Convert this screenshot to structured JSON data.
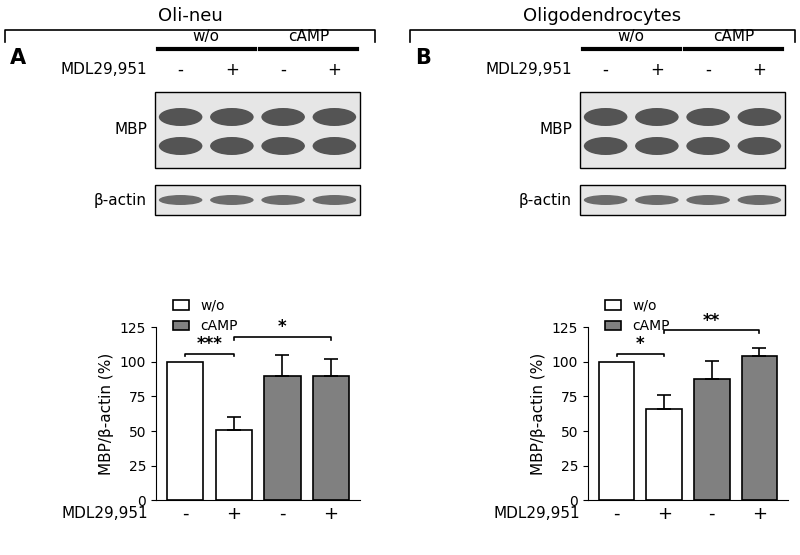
{
  "figure": {
    "panels": [
      {
        "letter": "A",
        "header": "Oli-neu",
        "groups": [
          "w/o",
          "cAMP"
        ],
        "treatment": "MDL29,951",
        "lanes": [
          "-",
          "+",
          "-",
          "+"
        ],
        "rows": [
          "MBP",
          "β-actin"
        ]
      },
      {
        "letter": "B",
        "header": "Oligodendrocytes",
        "groups": [
          "w/o",
          "cAMP"
        ],
        "treatment": "MDL29,951",
        "lanes": [
          "-",
          "+",
          "-",
          "+"
        ],
        "rows": [
          "MBP",
          "β-actin"
        ]
      }
    ]
  },
  "chart_data": [
    {
      "type": "bar",
      "ylabel": "MBP/β-actin (%)",
      "xlabel": "MDL29,951",
      "categories": [
        "-",
        "+",
        "-",
        "+"
      ],
      "series": [
        {
          "name": "w/o",
          "color": "#ffffff",
          "values": [
            100,
            51,
            null,
            null
          ],
          "errors": [
            0,
            9,
            null,
            null
          ]
        },
        {
          "name": "cAMP",
          "color": "#808080",
          "values": [
            null,
            null,
            90,
            90
          ],
          "errors": [
            null,
            null,
            15,
            12
          ]
        }
      ],
      "ylim": [
        0,
        125
      ],
      "yticks": [
        0,
        25,
        50,
        75,
        100,
        125
      ],
      "legend": "upper left",
      "annotations": [
        {
          "text": "***",
          "from": 0,
          "to": 1
        },
        {
          "text": "*",
          "from": 1,
          "to": 3
        }
      ]
    },
    {
      "type": "bar",
      "ylabel": "MBP/β-actin (%)",
      "xlabel": "MDL29,951",
      "categories": [
        "-",
        "+",
        "-",
        "+"
      ],
      "series": [
        {
          "name": "w/o",
          "color": "#ffffff",
          "values": [
            100,
            66,
            null,
            null
          ],
          "errors": [
            0,
            10,
            null,
            null
          ]
        },
        {
          "name": "cAMP",
          "color": "#808080",
          "values": [
            null,
            null,
            88,
            104
          ],
          "errors": [
            null,
            null,
            13,
            6
          ]
        }
      ],
      "ylim": [
        0,
        125
      ],
      "yticks": [
        0,
        25,
        50,
        75,
        100,
        125
      ],
      "legend": "upper left",
      "annotations": [
        {
          "text": "*",
          "from": 0,
          "to": 1
        },
        {
          "text": "**",
          "from": 1,
          "to": 3
        }
      ]
    }
  ]
}
